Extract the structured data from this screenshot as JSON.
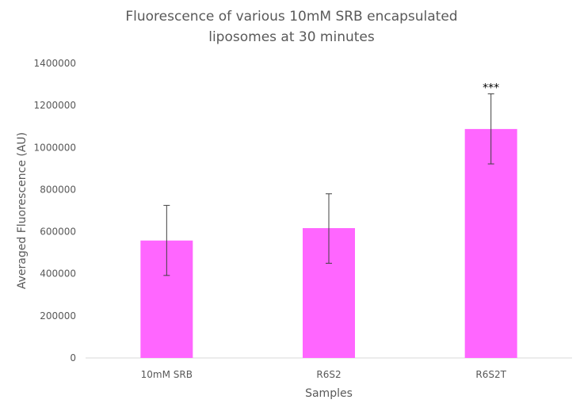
{
  "chart_data": {
    "type": "bar",
    "title_lines": [
      "Fluorescence of various 10mM SRB encapsulated",
      "liposomes at 30 minutes"
    ],
    "xlabel": "Samples",
    "ylabel": "Averaged Fluorescence (AU)",
    "categories": [
      "10mM SRB",
      "R6S2",
      "R6S2T"
    ],
    "values": [
      558000,
      617000,
      1088000
    ],
    "error_low": [
      392000,
      450000,
      922000
    ],
    "error_high": [
      725000,
      780000,
      1255000
    ],
    "annotations": [
      "",
      "",
      "***"
    ],
    "ylim": [
      0,
      1400000
    ],
    "yticks": [
      "0",
      "200000",
      "400000",
      "600000",
      "800000",
      "1000000",
      "1200000",
      "1400000"
    ],
    "grid": false,
    "legend": "none",
    "bar_color": "#FF66FF"
  }
}
